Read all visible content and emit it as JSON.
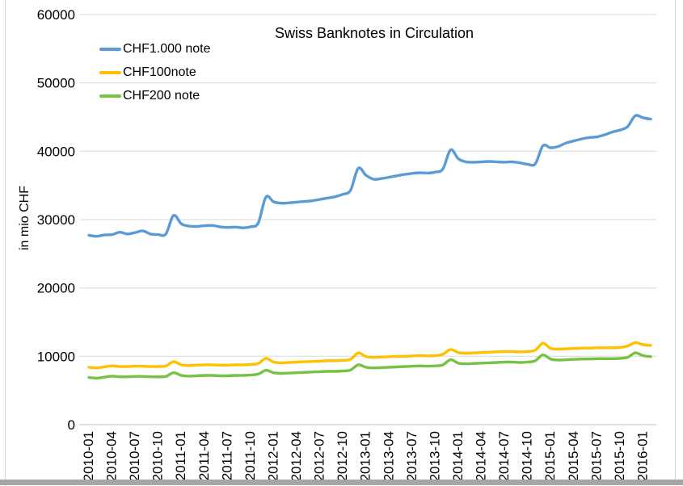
{
  "chart_data": {
    "type": "line",
    "title": "Swiss Banknotes in Circulation",
    "ylabel": "in mio CHF",
    "ylim": [
      0,
      60000
    ],
    "ytick_interval": 10000,
    "y_tick_labels": [
      "0",
      "10000",
      "20000",
      "30000",
      "40000",
      "50000",
      "60000"
    ],
    "x_unit": "month",
    "x_start": "2010-01",
    "x_end": "2016-02",
    "grid": "horizontal",
    "legend_position": "top-left",
    "x_tick_labels": [
      "2010-01",
      "2010-04",
      "2010-07",
      "2010-10",
      "2011-01",
      "2011-04",
      "2011-07",
      "2011-10",
      "2012-01",
      "2012-04",
      "2012-07",
      "2012-10",
      "2013-01",
      "2013-04",
      "2013-07",
      "2013-10",
      "2014-01",
      "2014-04",
      "2014-07",
      "2014-10",
      "2015-01",
      "2015-04",
      "2015-07",
      "2015-10",
      "2016-01"
    ],
    "series": [
      {
        "name": "CHF1.000 note",
        "color": "#5B9BD5",
        "values": [
          27700,
          27550,
          27750,
          27800,
          28150,
          27900,
          28100,
          28350,
          27900,
          27800,
          27900,
          30600,
          29400,
          29050,
          29000,
          29100,
          29150,
          28950,
          28850,
          28900,
          28800,
          28950,
          29500,
          33300,
          32600,
          32400,
          32450,
          32550,
          32650,
          32750,
          32950,
          33150,
          33350,
          33700,
          34300,
          37500,
          36500,
          35900,
          36000,
          36200,
          36400,
          36600,
          36750,
          36850,
          36800,
          36950,
          37400,
          40200,
          38900,
          38450,
          38400,
          38450,
          38500,
          38450,
          38400,
          38450,
          38300,
          38100,
          38150,
          40800,
          40500,
          40700,
          41200,
          41500,
          41800,
          42000,
          42100,
          42400,
          42800,
          43100,
          43600,
          45200,
          44900,
          44700
        ]
      },
      {
        "name": "CHF100note",
        "color": "#FFC000",
        "values": [
          8400,
          8300,
          8450,
          8600,
          8500,
          8500,
          8550,
          8550,
          8500,
          8500,
          8600,
          9200,
          8750,
          8650,
          8700,
          8750,
          8750,
          8700,
          8700,
          8750,
          8750,
          8800,
          8950,
          9700,
          9150,
          9050,
          9100,
          9150,
          9200,
          9250,
          9300,
          9350,
          9350,
          9400,
          9550,
          10500,
          9950,
          9850,
          9900,
          9950,
          10000,
          10000,
          10050,
          10100,
          10050,
          10100,
          10300,
          11000,
          10550,
          10450,
          10500,
          10550,
          10600,
          10650,
          10700,
          10700,
          10650,
          10700,
          10900,
          11900,
          11150,
          11050,
          11100,
          11150,
          11200,
          11200,
          11250,
          11250,
          11250,
          11300,
          11500,
          12000,
          11700,
          11600
        ]
      },
      {
        "name": "CHF200 note",
        "color": "#77C143",
        "values": [
          6900,
          6800,
          6950,
          7100,
          7000,
          7000,
          7050,
          7050,
          7000,
          7000,
          7050,
          7600,
          7200,
          7100,
          7150,
          7200,
          7200,
          7150,
          7150,
          7200,
          7200,
          7250,
          7400,
          7950,
          7600,
          7500,
          7550,
          7600,
          7650,
          7700,
          7750,
          7800,
          7800,
          7850,
          8000,
          8750,
          8400,
          8300,
          8350,
          8400,
          8450,
          8500,
          8550,
          8600,
          8550,
          8600,
          8750,
          9500,
          9000,
          8900,
          8950,
          9000,
          9050,
          9100,
          9150,
          9150,
          9100,
          9150,
          9350,
          10200,
          9600,
          9450,
          9500,
          9550,
          9600,
          9600,
          9650,
          9650,
          9650,
          9700,
          9850,
          10500,
          10100,
          9950
        ]
      }
    ]
  }
}
